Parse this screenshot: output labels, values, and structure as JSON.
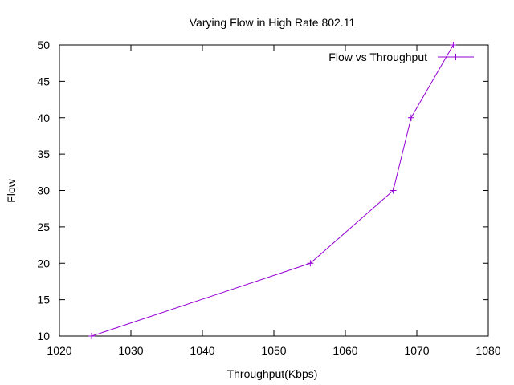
{
  "chart_data": {
    "type": "line",
    "title": "Varying Flow in High Rate 802.11",
    "xlabel": "Throughput(Kbps)",
    "ylabel": "Flow",
    "xlim": [
      1020,
      1080
    ],
    "ylim": [
      10,
      50
    ],
    "x_ticks": [
      1020,
      1030,
      1040,
      1050,
      1060,
      1070,
      1080
    ],
    "y_ticks": [
      10,
      15,
      20,
      25,
      30,
      35,
      40,
      45,
      50
    ],
    "grid": false,
    "legend_position": "top-right",
    "series": [
      {
        "name": "Flow vs Throughput",
        "color": "#9400d3",
        "marker": "plus",
        "points": [
          {
            "x": 1024.5,
            "y": 10
          },
          {
            "x": 1055.1,
            "y": 20
          },
          {
            "x": 1066.7,
            "y": 30
          },
          {
            "x": 1069.2,
            "y": 40
          },
          {
            "x": 1075.1,
            "y": 50
          }
        ]
      }
    ]
  }
}
